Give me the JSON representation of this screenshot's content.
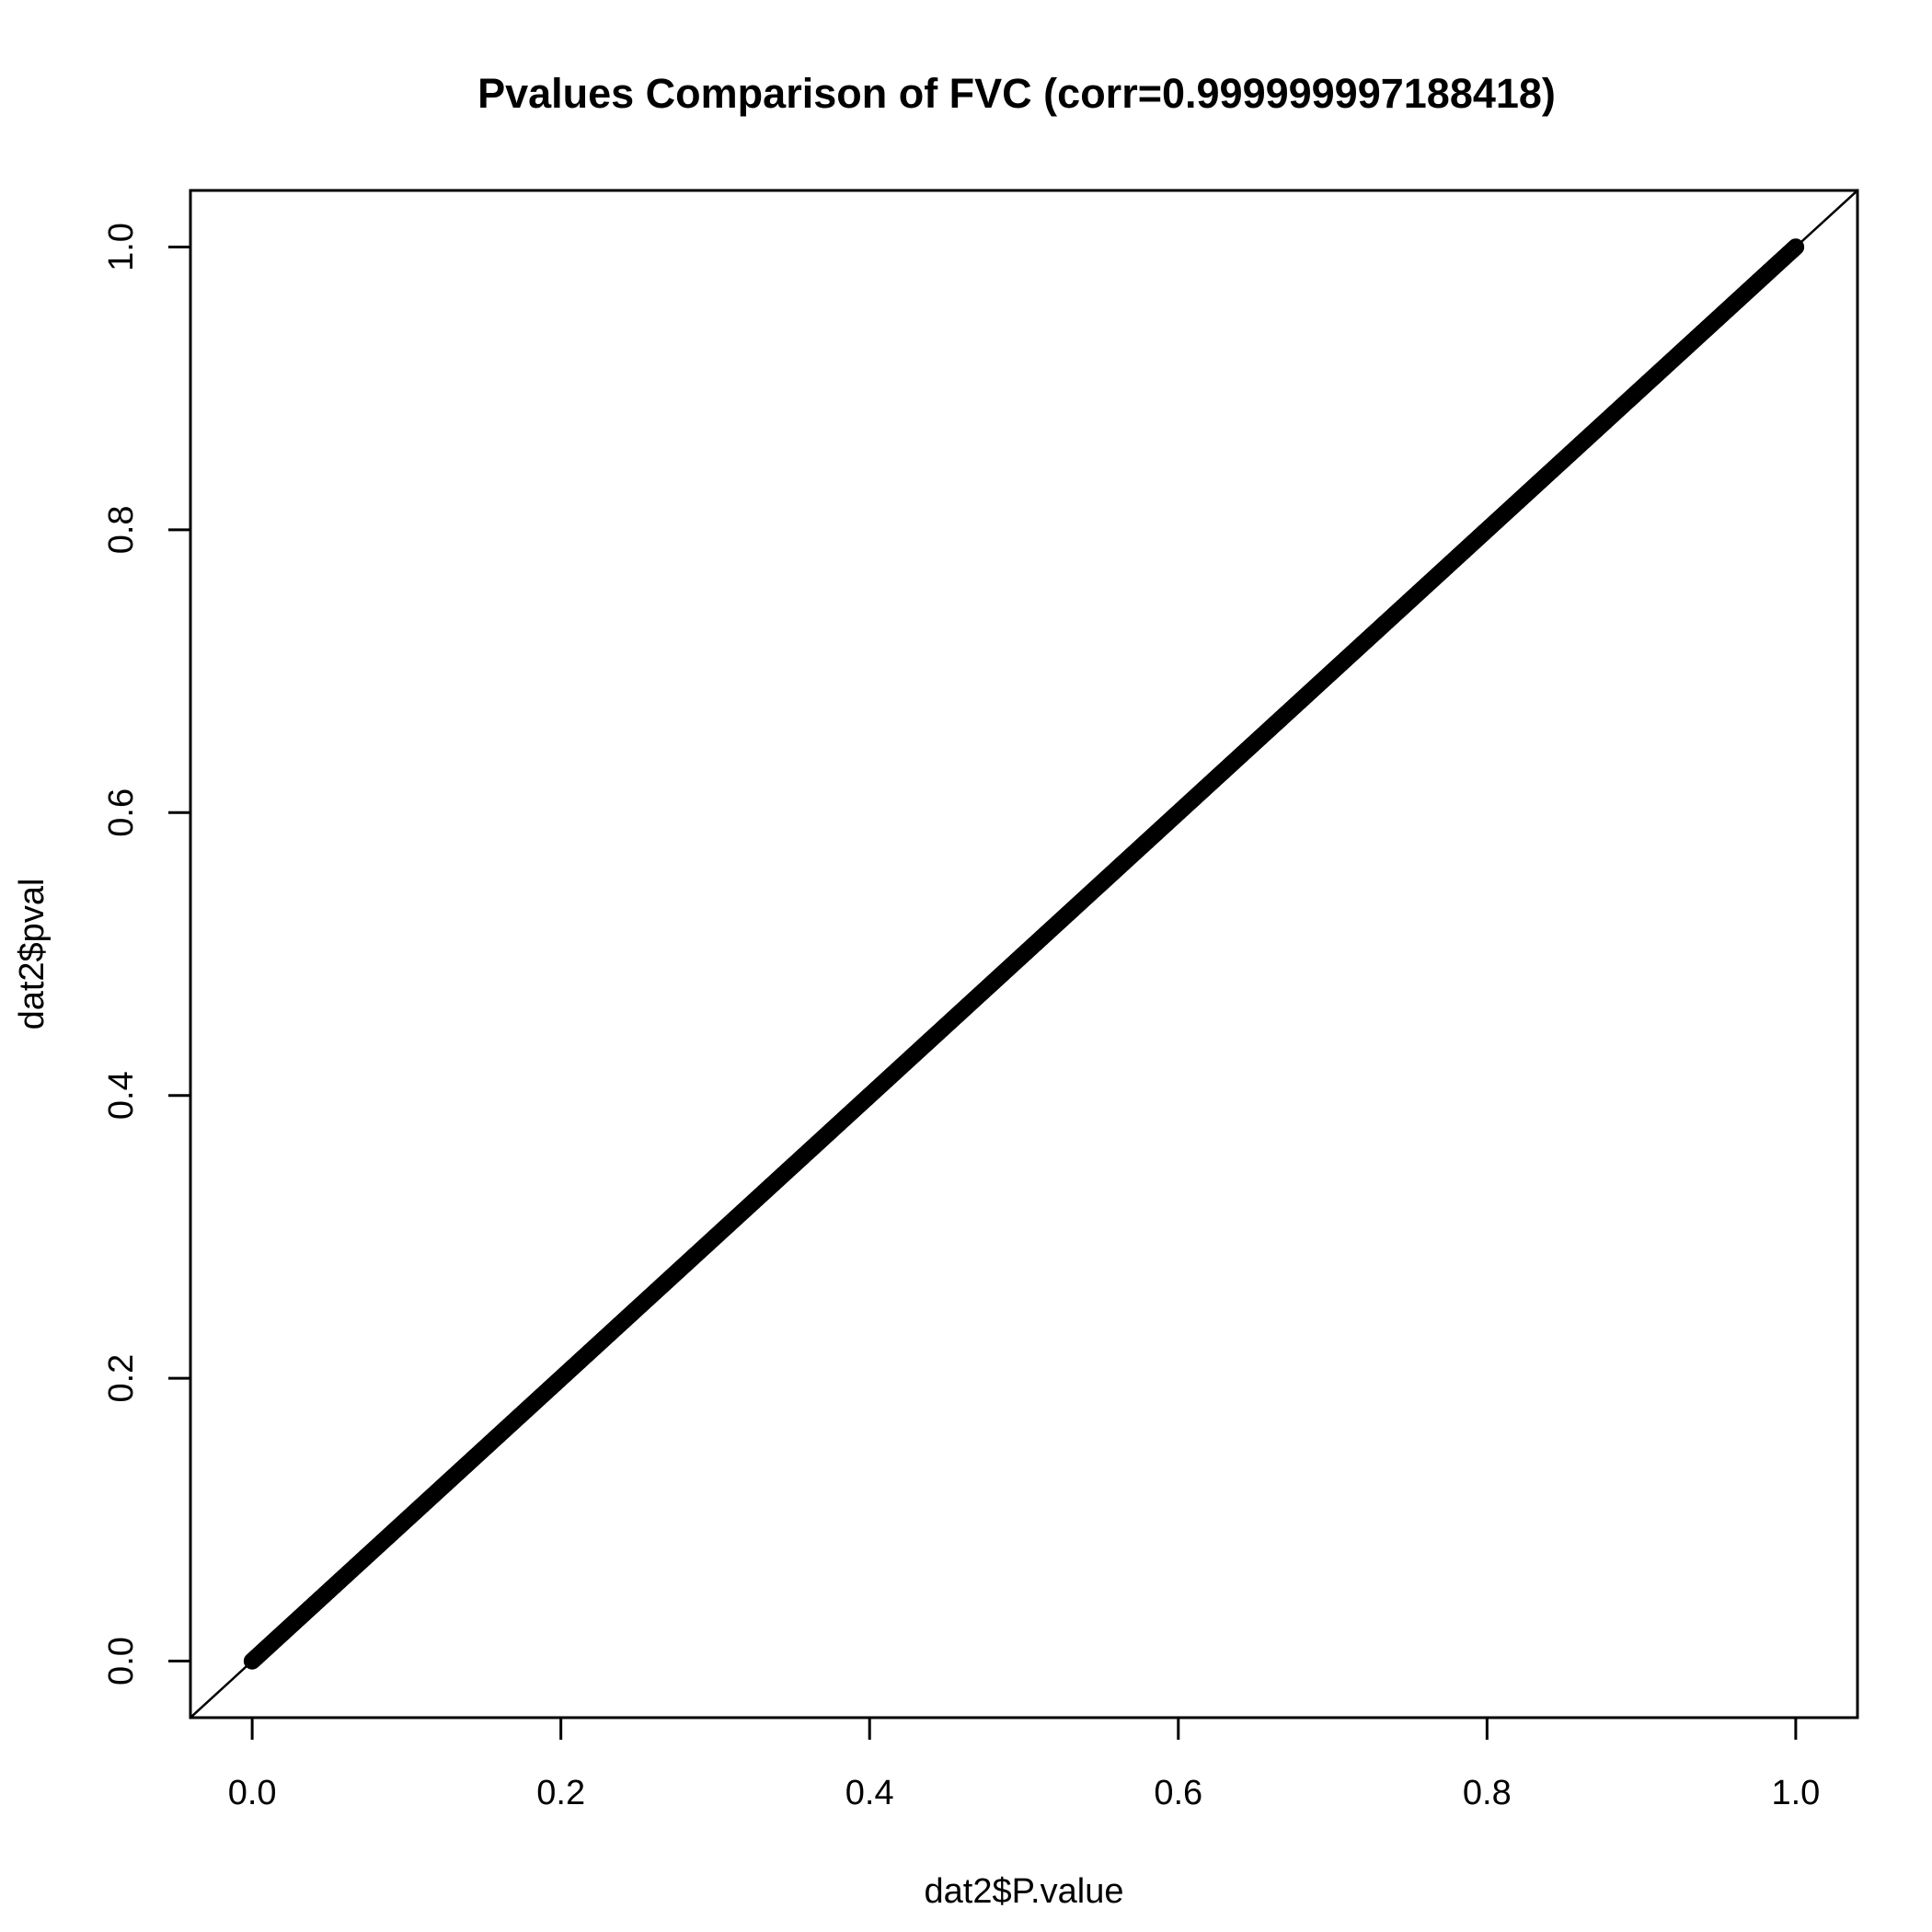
{
  "chart_data": {
    "type": "scatter",
    "title": "Pvalues Comparison of FVC (corr=0.999999997188418)",
    "xlabel": "dat2$P.value",
    "ylabel": "dat2$pval",
    "xlim": [
      -0.04,
      1.04
    ],
    "ylim": [
      -0.04,
      1.04
    ],
    "xticks": [
      "0.0",
      "0.2",
      "0.4",
      "0.6",
      "0.8",
      "1.0"
    ],
    "yticks": [
      "0.0",
      "0.2",
      "0.4",
      "0.6",
      "0.8",
      "1.0"
    ],
    "grid": false,
    "reference_line": {
      "intercept": 0,
      "slope": 1
    },
    "marker": "open-circle",
    "series": [
      {
        "x": [
          0.0,
          0.003,
          0.006,
          0.01,
          0.015,
          0.02,
          0.03,
          0.04,
          0.05,
          0.06,
          0.08,
          0.1,
          0.12,
          0.15,
          0.18,
          0.2,
          0.23,
          0.26,
          0.29,
          0.32,
          0.34,
          0.35,
          0.38,
          0.41,
          0.43,
          0.44,
          0.47,
          0.5,
          0.51,
          0.52,
          0.55,
          0.56,
          0.58,
          0.61,
          0.64,
          0.67,
          0.68,
          0.7,
          0.72,
          0.73,
          0.76,
          0.78,
          0.79,
          0.8,
          0.83,
          0.85,
          0.86,
          0.87,
          0.9,
          0.92,
          0.94,
          0.95,
          0.96,
          0.97,
          0.98,
          0.99,
          1.0
        ],
        "y": [
          0.0,
          0.003,
          0.006,
          0.01,
          0.015,
          0.02,
          0.03,
          0.04,
          0.05,
          0.06,
          0.08,
          0.1,
          0.12,
          0.15,
          0.18,
          0.2,
          0.23,
          0.26,
          0.29,
          0.32,
          0.34,
          0.35,
          0.38,
          0.41,
          0.43,
          0.44,
          0.47,
          0.5,
          0.51,
          0.52,
          0.55,
          0.56,
          0.58,
          0.61,
          0.64,
          0.67,
          0.68,
          0.7,
          0.72,
          0.73,
          0.76,
          0.78,
          0.79,
          0.8,
          0.83,
          0.85,
          0.86,
          0.87,
          0.9,
          0.92,
          0.94,
          0.95,
          0.96,
          0.97,
          0.98,
          0.99,
          1.0
        ]
      }
    ]
  }
}
